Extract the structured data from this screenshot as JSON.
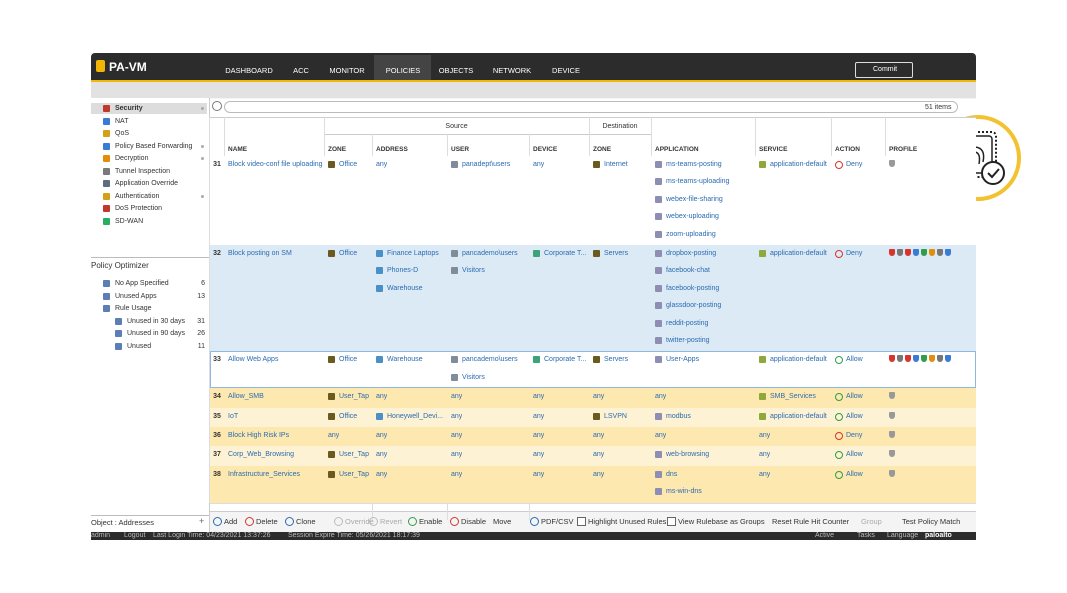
{
  "header": {
    "logo": "PA-VM",
    "tabs": [
      "DASHBOARD",
      "ACC",
      "MONITOR",
      "POLICIES",
      "OBJECTS",
      "NETWORK",
      "DEVICE"
    ],
    "commit": "Commit"
  },
  "sidebar": {
    "policies": [
      "Security",
      "NAT",
      "QoS",
      "Policy Based Forwarding",
      "Decryption",
      "Tunnel Inspection",
      "Application Override",
      "Authentication",
      "DoS Protection",
      "SD-WAN"
    ],
    "optimizer_title": "Policy Optimizer",
    "optimizer": [
      {
        "label": "No App Specified",
        "count": 6
      },
      {
        "label": "Unused Apps",
        "count": 13
      },
      {
        "label": "Rule Usage",
        "children": [
          {
            "label": "Unused in 30 days",
            "count": 31
          },
          {
            "label": "Unused in 90 days",
            "count": 26
          },
          {
            "label": "Unused",
            "count": 11
          }
        ]
      }
    ],
    "footer": "Object : Addresses"
  },
  "search": {
    "items": "51 items"
  },
  "table": {
    "groups": {
      "source": "Source",
      "destination": "Destination"
    },
    "columns": [
      "NAME",
      "ZONE",
      "ADDRESS",
      "USER",
      "DEVICE",
      "ZONE",
      "APPLICATION",
      "SERVICE",
      "ACTION",
      "PROFILE"
    ],
    "rows": [
      {
        "number": 31,
        "name": "Block video-conf file uploading",
        "source_zone": [
          "Office"
        ],
        "source_address": [
          "any"
        ],
        "source_user": [
          "panadept\\users"
        ],
        "source_device": [
          "any"
        ],
        "destination_zone": [
          "Internet"
        ],
        "application": [
          "ms-teams-posting",
          "ms-teams-uploading",
          "webex-file-sharing",
          "webex-uploading",
          "zoom-uploading"
        ],
        "service": [
          "application-default"
        ],
        "action": "Deny"
      },
      {
        "number": 32,
        "name": "Block posting on SM",
        "source_zone": [
          "Office"
        ],
        "source_address": [
          "Finance Laptops",
          "Phones-D",
          "Warehouse"
        ],
        "source_user": [
          "pancademo\\users",
          "Visitors"
        ],
        "source_device": [
          "Corporate T..."
        ],
        "destination_zone": [
          "Servers"
        ],
        "application": [
          "dropbox-posting",
          "facebook-chat",
          "facebook-posting",
          "glassdoor-posting",
          "reddit-posting",
          "twitter-posting"
        ],
        "service": [
          "application-default"
        ],
        "action": "Deny"
      },
      {
        "number": 33,
        "name": "Allow Web Apps",
        "source_zone": [
          "Office"
        ],
        "source_address": [
          "Warehouse"
        ],
        "source_user": [
          "pancademo\\users",
          "Visitors"
        ],
        "source_device": [
          "Corporate T..."
        ],
        "destination_zone": [
          "Servers"
        ],
        "application": [
          "User-Apps"
        ],
        "service": [
          "application-default"
        ],
        "action": "Allow"
      },
      {
        "number": 34,
        "name": "Allow_SMB",
        "source_zone": [
          "User_Tap"
        ],
        "source_address": [
          "any"
        ],
        "source_user": [
          "any"
        ],
        "source_device": [
          "any"
        ],
        "destination_zone": [
          "any"
        ],
        "application": [
          "any"
        ],
        "service": [
          "SMB_Services"
        ],
        "action": "Allow"
      },
      {
        "number": 35,
        "name": "IoT",
        "source_zone": [
          "Office"
        ],
        "source_address": [
          "Honeywell_Devi..."
        ],
        "source_user": [
          "any"
        ],
        "source_device": [
          "any"
        ],
        "destination_zone": [
          "LSVPN"
        ],
        "application": [
          "modbus"
        ],
        "service": [
          "application-default"
        ],
        "action": "Allow"
      },
      {
        "number": 36,
        "name": "Block High Risk IPs",
        "source_zone": [
          "any"
        ],
        "source_address": [
          "any"
        ],
        "source_user": [
          "any"
        ],
        "source_device": [
          "any"
        ],
        "destination_zone": [
          "any"
        ],
        "application": [
          "any"
        ],
        "service": [
          "any"
        ],
        "action": "Deny"
      },
      {
        "number": 37,
        "name": "Corp_Web_Browsing",
        "source_zone": [
          "User_Tap"
        ],
        "source_address": [
          "any"
        ],
        "source_user": [
          "any"
        ],
        "source_device": [
          "any"
        ],
        "destination_zone": [
          "any"
        ],
        "application": [
          "web-browsing"
        ],
        "service": [
          "any"
        ],
        "action": "Allow"
      },
      {
        "number": 38,
        "name": "Infrastructure_Services",
        "source_zone": [
          "User_Tap"
        ],
        "source_address": [
          "any"
        ],
        "source_user": [
          "any"
        ],
        "source_device": [
          "any"
        ],
        "destination_zone": [
          "any"
        ],
        "application": [
          "dns",
          "ms-win-dns"
        ],
        "service": [
          "any"
        ],
        "action": "Allow"
      }
    ]
  },
  "toolbar": [
    "Add",
    "Delete",
    "Clone",
    "Override",
    "Revert",
    "Enable",
    "Disable",
    "Move",
    "PDF/CSV",
    "Highlight Unused Rules",
    "View Rulebase as Groups",
    "Reset Rule Hit Counter",
    "Group",
    "Test Policy Match"
  ],
  "status": {
    "left": [
      "admin",
      "Logout",
      "Last Login Time: 04/23/2021 13:37:26",
      "Session Expire Time: 05/26/2021 18:17:39"
    ],
    "right": [
      "Active",
      "Tasks",
      "Language",
      "paloalto"
    ]
  }
}
